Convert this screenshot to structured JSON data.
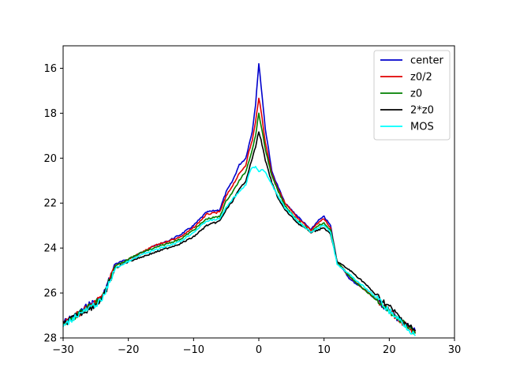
{
  "chart_data": {
    "type": "line",
    "title": "",
    "xlabel": "",
    "ylabel": "",
    "xlim": [
      -30,
      30
    ],
    "ylim": [
      28,
      15
    ],
    "y_inverted": true,
    "grid": false,
    "legend_position": "top-right",
    "x_ticks": [
      -30,
      -20,
      -10,
      0,
      10,
      20,
      30
    ],
    "x_tick_labels": [
      "−30",
      "−20",
      "−10",
      "0",
      "10",
      "20",
      "30"
    ],
    "y_ticks": [
      16,
      18,
      20,
      22,
      24,
      26,
      28
    ],
    "y_tick_labels": [
      "16",
      "18",
      "20",
      "22",
      "24",
      "26",
      "28"
    ],
    "series": [
      {
        "name": "center",
        "color": "#0000cc",
        "x": [
          -30,
          -28,
          -26,
          -24,
          -22,
          -20,
          -18,
          -16,
          -14,
          -12,
          -10,
          -8,
          -6,
          -5,
          -4,
          -3,
          -2,
          -1.5,
          -1,
          -0.5,
          0,
          0.5,
          1,
          1.5,
          2,
          3,
          4,
          6,
          8,
          9,
          10,
          11,
          12,
          14,
          16,
          18,
          20,
          22,
          24
        ],
        "y": [
          27.3,
          27.0,
          26.5,
          26.2,
          24.7,
          24.5,
          24.2,
          23.9,
          23.7,
          23.4,
          23.0,
          22.4,
          22.3,
          21.5,
          21.0,
          20.3,
          20.0,
          19.4,
          18.8,
          17.6,
          15.8,
          17.2,
          18.7,
          19.6,
          20.6,
          21.3,
          22.0,
          22.6,
          23.2,
          22.8,
          22.6,
          23.0,
          24.6,
          25.4,
          25.8,
          26.3,
          26.8,
          27.3,
          27.7
        ]
      },
      {
        "name": "z0/2",
        "color": "#e00000",
        "x": [
          -30,
          -28,
          -26,
          -24,
          -22,
          -20,
          -18,
          -16,
          -14,
          -12,
          -10,
          -8,
          -6,
          -5,
          -4,
          -3,
          -2,
          -1.5,
          -1,
          -0.5,
          0,
          0.5,
          1,
          1.5,
          2,
          3,
          4,
          6,
          8,
          9,
          10,
          11,
          12,
          14,
          16,
          18,
          20,
          22,
          24
        ],
        "y": [
          27.4,
          27.0,
          26.6,
          26.2,
          24.8,
          24.5,
          24.2,
          23.9,
          23.7,
          23.5,
          23.1,
          22.5,
          22.4,
          21.7,
          21.2,
          20.7,
          20.3,
          19.7,
          19.2,
          18.4,
          17.3,
          18.2,
          19.3,
          20.0,
          20.7,
          21.4,
          22.0,
          22.7,
          23.2,
          22.9,
          22.7,
          23.1,
          24.6,
          25.3,
          25.8,
          26.3,
          26.8,
          27.3,
          27.8
        ]
      },
      {
        "name": "z0",
        "color": "#007f00",
        "x": [
          -30,
          -28,
          -26,
          -24,
          -22,
          -20,
          -18,
          -16,
          -14,
          -12,
          -10,
          -8,
          -6,
          -5,
          -4,
          -3,
          -2,
          -1.5,
          -1,
          -0.5,
          0,
          0.5,
          1,
          1.5,
          2,
          3,
          4,
          6,
          8,
          9,
          10,
          11,
          12,
          14,
          16,
          18,
          20,
          22,
          24
        ],
        "y": [
          27.4,
          27.0,
          26.6,
          26.2,
          24.8,
          24.5,
          24.2,
          24.0,
          23.8,
          23.6,
          23.2,
          22.7,
          22.6,
          21.9,
          21.5,
          21.0,
          20.6,
          20.1,
          19.6,
          19.0,
          18.0,
          18.8,
          19.6,
          20.2,
          20.8,
          21.5,
          22.1,
          22.8,
          23.3,
          23.0,
          22.9,
          23.2,
          24.6,
          25.3,
          25.8,
          26.3,
          26.8,
          27.3,
          27.8
        ]
      },
      {
        "name": "2*z0",
        "color": "#000000",
        "x": [
          -30,
          -28,
          -26,
          -24,
          -22,
          -20,
          -18,
          -16,
          -14,
          -12,
          -10,
          -8,
          -6,
          -5,
          -4,
          -3,
          -2,
          -1.5,
          -1,
          -0.5,
          0,
          0.5,
          1,
          1.5,
          2,
          3,
          4,
          6,
          8,
          9,
          10,
          11,
          12,
          14,
          16,
          18,
          20,
          22,
          24
        ],
        "y": [
          27.4,
          27.0,
          26.7,
          26.3,
          24.9,
          24.6,
          24.4,
          24.2,
          24.0,
          23.8,
          23.5,
          23.0,
          22.8,
          22.3,
          21.9,
          21.4,
          21.0,
          20.5,
          20.0,
          19.5,
          18.8,
          19.4,
          20.1,
          20.6,
          21.1,
          21.8,
          22.3,
          22.9,
          23.3,
          23.2,
          23.1,
          23.4,
          24.6,
          25.0,
          25.5,
          26.1,
          26.6,
          27.2,
          27.7
        ]
      },
      {
        "name": "MOS",
        "color": "#00ffff",
        "x": [
          -30,
          -28,
          -26,
          -24,
          -22,
          -20,
          -18,
          -16,
          -14,
          -12,
          -10,
          -8,
          -6,
          -5,
          -4,
          -3,
          -2,
          -1.5,
          -1,
          -0.5,
          0,
          0.5,
          1,
          1.5,
          2,
          3,
          4,
          6,
          8,
          9,
          10,
          11,
          12,
          14,
          16,
          18,
          20,
          22,
          24
        ],
        "y": [
          27.5,
          27.0,
          26.7,
          26.3,
          24.9,
          24.6,
          24.3,
          24.1,
          23.9,
          23.7,
          23.3,
          22.8,
          22.7,
          22.2,
          21.8,
          21.5,
          21.2,
          20.7,
          20.4,
          20.4,
          20.6,
          20.5,
          20.6,
          20.9,
          21.2,
          21.7,
          22.2,
          22.8,
          23.3,
          23.1,
          23.0,
          23.3,
          24.7,
          25.2,
          25.7,
          26.2,
          26.8,
          27.3,
          27.9
        ]
      }
    ]
  }
}
